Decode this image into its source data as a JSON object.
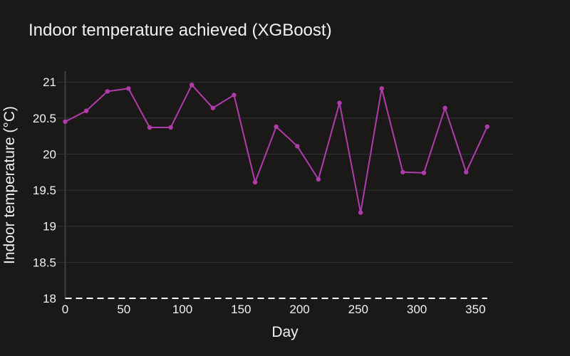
{
  "chart_data": {
    "type": "line",
    "title": "Indoor temperature achieved (XGBoost)",
    "xlabel": "Day",
    "ylabel": "Indoor temperature (°C)",
    "xlim": [
      -7,
      382
    ],
    "ylim": [
      18,
      21.15
    ],
    "x_ticks": [
      0,
      50,
      100,
      150,
      200,
      250,
      300,
      350
    ],
    "x_tick_labels": [
      "0",
      "50",
      "100",
      "150",
      "200",
      "250",
      "300",
      "350"
    ],
    "y_ticks": [
      18,
      18.5,
      19,
      19.5,
      20,
      20.5,
      21
    ],
    "y_tick_labels": [
      "18",
      "18.5",
      "19",
      "19.5",
      "20",
      "20.5",
      "21"
    ],
    "grid": true,
    "series": [
      {
        "color": "#b03cab",
        "markers": true,
        "x": [
          0,
          18,
          36,
          54,
          72,
          90,
          108,
          126,
          144,
          162,
          180,
          198,
          216,
          234,
          252,
          270,
          288,
          306,
          324,
          342,
          360
        ],
        "y": [
          20.45,
          20.6,
          20.87,
          20.91,
          20.37,
          20.37,
          20.96,
          20.64,
          20.82,
          19.61,
          20.38,
          20.11,
          19.65,
          20.71,
          19.19,
          20.91,
          19.75,
          19.74,
          20.64,
          19.75,
          20.38
        ]
      },
      {
        "color": "#ffffff",
        "dash": "dashed",
        "markers": false,
        "x": [
          0,
          360
        ],
        "y": [
          18,
          18
        ]
      }
    ]
  }
}
